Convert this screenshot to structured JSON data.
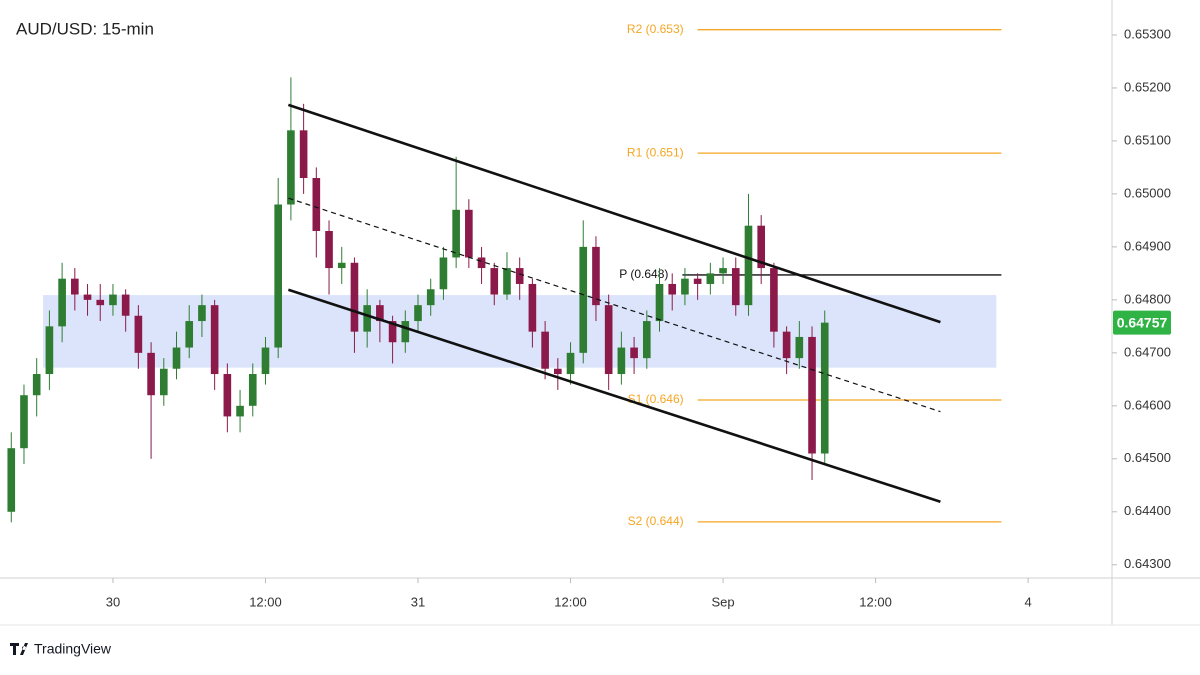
{
  "chart_data": {
    "type": "candlestick",
    "title": "AUD/USD: 15-min",
    "brand": "TradingView",
    "up_color": "#2e7d32",
    "down_color": "#8b1a4a",
    "xlim": [
      -8.1,
      78.6
    ],
    "xticks": [
      {
        "value": 0,
        "label": "30"
      },
      {
        "value": 12,
        "label": "12:00"
      },
      {
        "value": 24,
        "label": "31"
      },
      {
        "value": 36,
        "label": "12:00"
      },
      {
        "value": 48,
        "label": "Sep"
      },
      {
        "value": 60,
        "label": "12:00"
      },
      {
        "value": 72,
        "label": "4"
      }
    ],
    "ylim": [
      0.64275,
      0.65366
    ],
    "yticks": [
      {
        "value": 0.643,
        "label": "0.64300"
      },
      {
        "value": 0.644,
        "label": "0.64400"
      },
      {
        "value": 0.645,
        "label": "0.64500"
      },
      {
        "value": 0.646,
        "label": "0.64600"
      },
      {
        "value": 0.647,
        "label": "0.64700"
      },
      {
        "value": 0.648,
        "label": "0.64800"
      },
      {
        "value": 0.649,
        "label": "0.64900"
      },
      {
        "value": 0.65,
        "label": "0.65000"
      },
      {
        "value": 0.651,
        "label": "0.65100"
      },
      {
        "value": 0.652,
        "label": "0.65200"
      },
      {
        "value": 0.653,
        "label": "0.65300"
      }
    ],
    "last_price": 0.64757,
    "last_price_color": "#2fb344",
    "x": [
      -8,
      -7,
      -6,
      -5,
      -4,
      -3,
      -2,
      -1,
      0,
      1,
      2,
      3,
      4,
      5,
      6,
      7,
      8,
      9,
      10,
      11,
      12,
      13,
      14,
      15,
      16,
      17,
      18,
      19,
      20,
      21,
      22,
      23,
      24,
      25,
      26,
      27,
      28,
      29,
      30,
      31,
      32,
      33,
      34,
      35,
      36,
      37,
      38,
      39,
      40,
      41,
      42,
      43,
      44,
      45,
      46,
      47,
      48,
      49,
      50,
      51,
      52,
      53,
      54,
      55,
      56
    ],
    "ohlc": [
      [
        0.644,
        0.6455,
        0.6438,
        0.6452
      ],
      [
        0.6452,
        0.6464,
        0.6449,
        0.6462
      ],
      [
        0.6462,
        0.6469,
        0.6458,
        0.6466
      ],
      [
        0.6466,
        0.6478,
        0.6463,
        0.6475
      ],
      [
        0.6475,
        0.6487,
        0.6472,
        0.6484
      ],
      [
        0.6484,
        0.6486,
        0.6478,
        0.6481
      ],
      [
        0.6481,
        0.6483,
        0.6477,
        0.648
      ],
      [
        0.648,
        0.6483,
        0.6476,
        0.6479
      ],
      [
        0.6479,
        0.6483,
        0.6477,
        0.6481
      ],
      [
        0.6481,
        0.6482,
        0.6474,
        0.6477
      ],
      [
        0.6477,
        0.6479,
        0.6467,
        0.647
      ],
      [
        0.647,
        0.6472,
        0.645,
        0.6462
      ],
      [
        0.6462,
        0.6469,
        0.646,
        0.6467
      ],
      [
        0.6467,
        0.6474,
        0.6465,
        0.6471
      ],
      [
        0.6471,
        0.6479,
        0.6469,
        0.6476
      ],
      [
        0.6476,
        0.6481,
        0.6473,
        0.6479
      ],
      [
        0.6479,
        0.648,
        0.6463,
        0.6466
      ],
      [
        0.6466,
        0.6468,
        0.6455,
        0.6458
      ],
      [
        0.6458,
        0.6463,
        0.6455,
        0.646
      ],
      [
        0.646,
        0.6468,
        0.6458,
        0.6466
      ],
      [
        0.6466,
        0.6473,
        0.6464,
        0.6471
      ],
      [
        0.6471,
        0.6503,
        0.6469,
        0.6498
      ],
      [
        0.6498,
        0.6522,
        0.6495,
        0.6512
      ],
      [
        0.6512,
        0.6517,
        0.65,
        0.6503
      ],
      [
        0.6503,
        0.6505,
        0.6488,
        0.6493
      ],
      [
        0.6493,
        0.6495,
        0.6481,
        0.6486
      ],
      [
        0.6486,
        0.649,
        0.6483,
        0.6487
      ],
      [
        0.6487,
        0.6488,
        0.647,
        0.6474
      ],
      [
        0.6474,
        0.6482,
        0.6471,
        0.6479
      ],
      [
        0.6479,
        0.648,
        0.6472,
        0.6476
      ],
      [
        0.6476,
        0.6477,
        0.6468,
        0.6472
      ],
      [
        0.6472,
        0.6478,
        0.647,
        0.6476
      ],
      [
        0.6476,
        0.6481,
        0.6474,
        0.6479
      ],
      [
        0.6479,
        0.6484,
        0.6477,
        0.6482
      ],
      [
        0.6482,
        0.649,
        0.648,
        0.6488
      ],
      [
        0.6488,
        0.6507,
        0.6486,
        0.6497
      ],
      [
        0.6497,
        0.6499,
        0.6486,
        0.6488
      ],
      [
        0.6488,
        0.649,
        0.6483,
        0.6486
      ],
      [
        0.6486,
        0.6487,
        0.6479,
        0.6481
      ],
      [
        0.6481,
        0.6489,
        0.648,
        0.6486
      ],
      [
        0.6486,
        0.6488,
        0.648,
        0.6483
      ],
      [
        0.6483,
        0.6484,
        0.6471,
        0.6474
      ],
      [
        0.6474,
        0.6476,
        0.6465,
        0.6467
      ],
      [
        0.6467,
        0.6469,
        0.6463,
        0.6466
      ],
      [
        0.6466,
        0.6472,
        0.6464,
        0.647
      ],
      [
        0.647,
        0.6495,
        0.6468,
        0.649
      ],
      [
        0.649,
        0.6492,
        0.6476,
        0.6479
      ],
      [
        0.6479,
        0.6481,
        0.6463,
        0.6466
      ],
      [
        0.6466,
        0.6474,
        0.6464,
        0.6471
      ],
      [
        0.6471,
        0.6473,
        0.6466,
        0.6469
      ],
      [
        0.6469,
        0.6478,
        0.6467,
        0.6476
      ],
      [
        0.6476,
        0.6486,
        0.6474,
        0.6483
      ],
      [
        0.6483,
        0.6485,
        0.6478,
        0.6481
      ],
      [
        0.6481,
        0.6486,
        0.6479,
        0.6484
      ],
      [
        0.6484,
        0.6485,
        0.648,
        0.6483
      ],
      [
        0.6483,
        0.6487,
        0.6481,
        0.6485
      ],
      [
        0.6485,
        0.6488,
        0.6483,
        0.6486
      ],
      [
        0.6486,
        0.6488,
        0.6477,
        0.6479
      ],
      [
        0.6479,
        0.65,
        0.6477,
        0.6494
      ],
      [
        0.6494,
        0.6496,
        0.6483,
        0.6486
      ],
      [
        0.6486,
        0.6487,
        0.6471,
        0.6474
      ],
      [
        0.6474,
        0.6475,
        0.6466,
        0.6469
      ],
      [
        0.6469,
        0.6476,
        0.6467,
        0.6473
      ],
      [
        0.6473,
        0.6475,
        0.6446,
        0.6451
      ],
      [
        0.6451,
        0.6478,
        0.6449,
        0.64757
      ]
    ],
    "zone": {
      "x": [
        -5.5,
        69.5
      ],
      "y": [
        0.64672,
        0.64809
      ],
      "color": "#dbe4fb"
    },
    "pivots": [
      {
        "label": "R2 (0.653)",
        "value": 0.6531,
        "start": 46.0,
        "end": 69.9,
        "color": "#f5a623"
      },
      {
        "label": "R1 (0.651)",
        "value": 0.65077,
        "start": 46.0,
        "end": 69.9,
        "color": "#f5a623"
      },
      {
        "label": "P (0.648)",
        "value": 0.64847,
        "start": 44.8,
        "end": 69.9,
        "color": "#111111"
      },
      {
        "label": "S1 (0.646)",
        "value": 0.64611,
        "start": 46.0,
        "end": 69.9,
        "color": "#f5a623"
      },
      {
        "label": "S2 (0.644)",
        "value": 0.64381,
        "start": 46.0,
        "end": 69.9,
        "color": "#f5a623"
      }
    ],
    "channel": [
      {
        "x": [
          13.8,
          65.1
        ],
        "y": [
          0.65168,
          0.64758
        ],
        "style": "solid"
      },
      {
        "x": [
          13.8,
          65.1
        ],
        "y": [
          0.64992,
          0.64589
        ],
        "style": "dashed"
      },
      {
        "x": [
          13.8,
          65.1
        ],
        "y": [
          0.64819,
          0.64419
        ],
        "style": "solid"
      }
    ]
  }
}
